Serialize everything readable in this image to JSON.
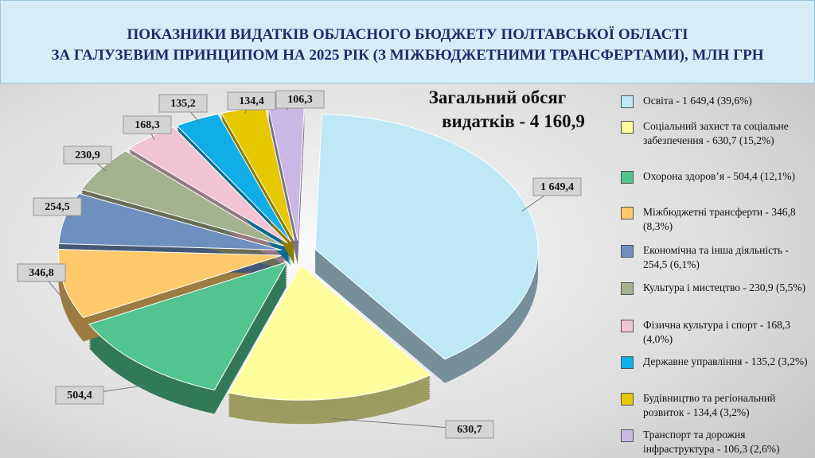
{
  "chart_data": {
    "type": "pie",
    "title": [
      "ПОКАЗНИКИ ВИДАТКІВ ОБЛАСНОГО БЮДЖЕТУ ПОЛТАВСЬКОЇ ОБЛАСТІ",
      "ЗА ГАЛУЗЕВИМ ПРИНЦИПОМ НА 2025 РІК (З МІЖБЮДЖЕТНИМИ ТРАНСФЕРТАМИ), МЛН ГРН"
    ],
    "annotation": [
      "Загальний обсяг",
      "видатків  - 4 160,9"
    ],
    "categories": [
      "Освіта - 1 649,4 (39,6%)",
      "Соціальний захист та соціальне забезпечення - 630,7 (15,2%)",
      "Охорона здоров’я - 504,4 (12,1%)",
      "Міжбюджетні трансферти - 346,8 (8,3%)",
      "Економічна та інша діяльність - 254,5 (6,1%)",
      "Культура і мистецтво - 230,9 (5,5%)",
      "Фізична культура і спорт - 168,3 (4,0%)",
      "Державне управління - 135,2 (3,2%)",
      "Будівництво та регіональний розвиток - 134,4 (3,2%)",
      "Транспорт та дорожня інфраструктура - 106,3 (2,6%)"
    ],
    "values": [
      1649.4,
      630.7,
      504.4,
      346.8,
      254.5,
      230.9,
      168.3,
      135.2,
      134.4,
      106.3
    ],
    "value_labels": [
      "1 649,4",
      "630,7",
      "504,4",
      "346,8",
      "254,5",
      "230,9",
      "168,3",
      "135,2",
      "134,4",
      "106,3"
    ],
    "colors": [
      "#bfe8f7",
      "#fdfd9e",
      "#52c490",
      "#fdc96a",
      "#6f8fbf",
      "#a5b28f",
      "#f1c4d4",
      "#10aee8",
      "#e5c800",
      "#c9b7e4"
    ]
  }
}
